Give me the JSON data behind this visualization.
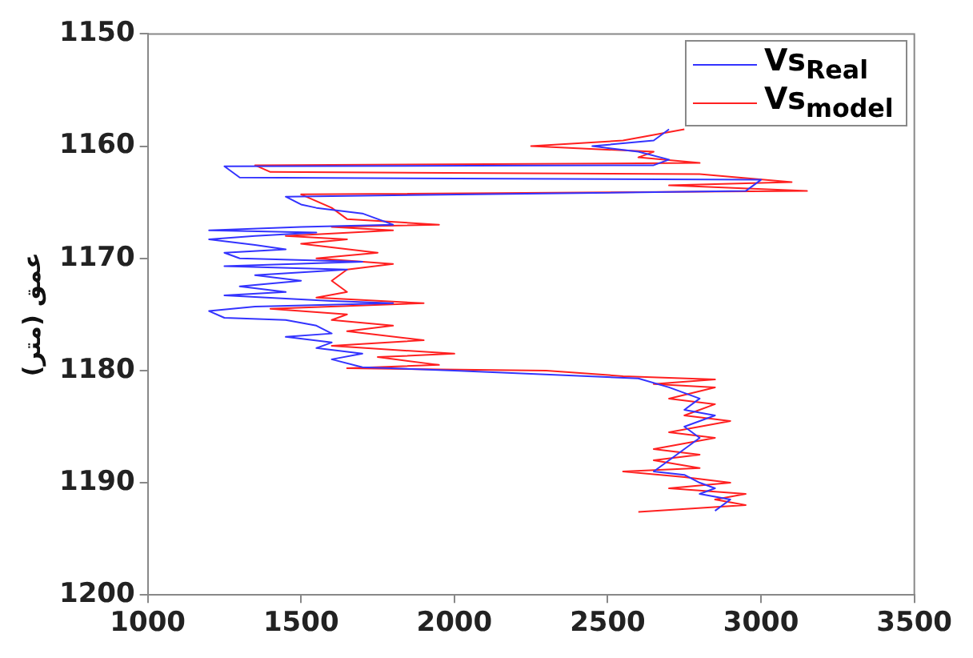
{
  "chart_data": {
    "type": "line",
    "ylabel": "عمق (متر)",
    "xlim": [
      1000,
      3500
    ],
    "xticks": [
      1000,
      1500,
      2000,
      2500,
      3000,
      3500
    ],
    "ylim": [
      1200,
      1150
    ],
    "yticks": [
      1150,
      1160,
      1170,
      1180,
      1190,
      1200
    ],
    "grid": false,
    "legend": "top right",
    "marker": "none",
    "line_style": "solid",
    "series": [
      {
        "name": "Vs$_{Real}$",
        "color": "#3333ff",
        "x": [
          2700,
          2650,
          2450,
          2600,
          2700,
          2650,
          1250,
          1300,
          3000,
          2950,
          1450,
          1500,
          1550,
          1700,
          1750,
          1800,
          1500,
          1200,
          1550,
          1350,
          1200,
          1350,
          1450,
          1250,
          1300,
          1700,
          1250,
          1650,
          1350,
          1500,
          1300,
          1450,
          1250,
          1600,
          1800,
          1350,
          1200,
          1250,
          1450,
          1550,
          1600,
          1450,
          1600,
          1550,
          1700,
          1600,
          1700,
          2000,
          2250,
          2600,
          2700,
          2800,
          2750,
          2850,
          2750,
          2800,
          2750,
          2700,
          2650,
          2750,
          2800,
          2850,
          2800,
          2900,
          2850
        ],
        "values": [
          1158.5,
          1159.5,
          1160,
          1160.5,
          1161.2,
          1161.7,
          1161.8,
          1162.8,
          1163,
          1164,
          1164.5,
          1165.2,
          1165.5,
          1166,
          1166.5,
          1167,
          1167.2,
          1167.5,
          1167.7,
          1168,
          1168.3,
          1168.8,
          1169.2,
          1169.5,
          1170,
          1170.3,
          1170.7,
          1171,
          1171.5,
          1172,
          1172.5,
          1173,
          1173.3,
          1173.8,
          1174,
          1174.3,
          1174.7,
          1175.3,
          1175.5,
          1176,
          1176.7,
          1177,
          1177.5,
          1178,
          1178.5,
          1179,
          1179.7,
          1180,
          1180.3,
          1180.7,
          1181.5,
          1182.5,
          1183.5,
          1184,
          1185,
          1186,
          1187,
          1188,
          1189,
          1189.3,
          1190,
          1190.5,
          1191,
          1191.5,
          1192.5
        ]
      },
      {
        "name": "Vs$_{model}$",
        "color": "#ff2020",
        "x": [
          2750,
          2550,
          2250,
          2650,
          2600,
          2800,
          1350,
          1400,
          2800,
          3100,
          2700,
          3150,
          1500,
          1600,
          1650,
          1950,
          1600,
          1800,
          1450,
          1650,
          1500,
          1750,
          1550,
          1800,
          1650,
          1600,
          1650,
          1550,
          1900,
          1400,
          1650,
          1600,
          1800,
          1650,
          1900,
          1600,
          2000,
          1750,
          1950,
          1650,
          2300,
          2550,
          2850,
          2650,
          2850,
          2700,
          2850,
          2750,
          2900,
          2700,
          2850,
          2650,
          2800,
          2650,
          2800,
          2550,
          2750,
          2900,
          2700,
          2950,
          2850,
          2950,
          2600
        ],
        "values": [
          1158.5,
          1159.5,
          1160,
          1160.5,
          1161,
          1161.5,
          1161.7,
          1162.3,
          1162.5,
          1163.2,
          1163.5,
          1164,
          1164.3,
          1165.5,
          1166.5,
          1167,
          1167.2,
          1167.5,
          1168,
          1168.3,
          1168.7,
          1169.5,
          1170,
          1170.5,
          1171,
          1172,
          1173,
          1173.5,
          1174,
          1174.5,
          1175,
          1175.5,
          1176,
          1176.5,
          1177.3,
          1177.8,
          1178.5,
          1178.8,
          1179.5,
          1179.8,
          1180,
          1180.5,
          1180.8,
          1181.2,
          1181.5,
          1182.5,
          1183,
          1184,
          1184.5,
          1185.5,
          1186,
          1187,
          1187.5,
          1188,
          1188.7,
          1189,
          1189.5,
          1190,
          1190.5,
          1191,
          1191.5,
          1192,
          1192.6
        ]
      }
    ]
  }
}
